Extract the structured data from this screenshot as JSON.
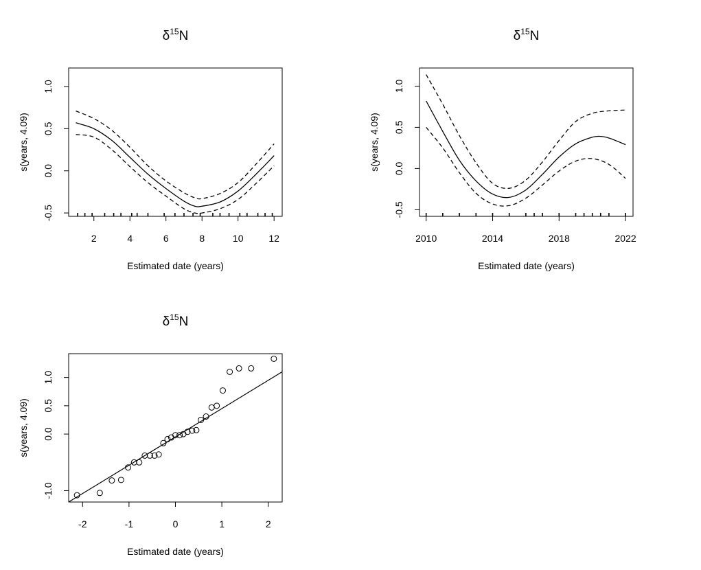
{
  "chart_data": [
    {
      "type": "line",
      "title": "δ15N",
      "title_base": "δ",
      "title_sup": "15",
      "title_rest": "N",
      "xlabel": "Estimated date (years)",
      "ylabel": "s(years, 4.09)",
      "xlim": [
        0.6,
        12.45
      ],
      "ylim": [
        -0.54,
        1.22
      ],
      "xticks": [
        2,
        4,
        6,
        8,
        10,
        12
      ],
      "xtick_labels": [
        "2",
        "4",
        "6",
        "8",
        "10",
        "12"
      ],
      "yticks": [
        -0.5,
        0.0,
        0.5,
        1.0
      ],
      "ytick_labels": [
        "-0.5",
        "0.0",
        "0.5",
        "1.0"
      ],
      "rug": [
        1.1,
        1.5,
        1.9,
        2.6,
        3.1,
        3.5,
        4.1,
        4.4,
        5.0,
        5.9,
        6.5,
        7.0,
        7.5,
        7.9,
        8.6,
        9.0,
        9.5,
        10.1,
        10.5,
        11.1,
        11.5,
        11.9
      ],
      "series": [
        {
          "style": "solid",
          "x": [
            1,
            2,
            3,
            4,
            5,
            6,
            7,
            7.6,
            8,
            9,
            10,
            11,
            12
          ],
          "y": [
            0.57,
            0.5,
            0.36,
            0.16,
            -0.04,
            -0.21,
            -0.36,
            -0.42,
            -0.42,
            -0.37,
            -0.24,
            -0.04,
            0.18
          ]
        },
        {
          "style": "dashed",
          "x": [
            1,
            2,
            3,
            4,
            5,
            6,
            7,
            7.6,
            8,
            9,
            10,
            11,
            12
          ],
          "y": [
            0.71,
            0.62,
            0.48,
            0.28,
            0.06,
            -0.12,
            -0.26,
            -0.32,
            -0.33,
            -0.27,
            -0.14,
            0.08,
            0.32
          ]
        },
        {
          "style": "dashed",
          "x": [
            1,
            2,
            3,
            4,
            5,
            6,
            7,
            7.6,
            8,
            9,
            10,
            11,
            12
          ],
          "y": [
            0.43,
            0.4,
            0.25,
            0.05,
            -0.14,
            -0.3,
            -0.45,
            -0.5,
            -0.5,
            -0.45,
            -0.34,
            -0.15,
            0.06
          ]
        }
      ]
    },
    {
      "type": "line",
      "title": "δ15N",
      "title_base": "δ",
      "title_sup": "15",
      "title_rest": "N",
      "xlabel": "Estimated date (years)",
      "ylabel": "s(years, 4.09)",
      "xlim": [
        2009.6,
        2022.45
      ],
      "ylim": [
        -0.58,
        1.22
      ],
      "xticks": [
        2010,
        2014,
        2018,
        2022
      ],
      "xtick_labels": [
        "2010",
        "2014",
        "2018",
        "2022"
      ],
      "yticks": [
        -0.5,
        0.0,
        0.5,
        1.0
      ],
      "ytick_labels": [
        "-0.5",
        "0.0",
        "0.5",
        "1.0"
      ],
      "rug": [
        2010.0,
        2011.0,
        2012.0,
        2013.0,
        2014.0,
        2015.0,
        2016.0,
        2016.5,
        2017.0,
        2018.0,
        2019.0,
        2019.5,
        2020.0,
        2020.5,
        2021.0,
        2022.0
      ],
      "series": [
        {
          "style": "solid",
          "x": [
            2010,
            2011,
            2012,
            2013,
            2014,
            2015,
            2016,
            2017,
            2018,
            2019,
            2020,
            2020.5,
            2021,
            2022
          ],
          "y": [
            0.82,
            0.45,
            0.1,
            -0.15,
            -0.31,
            -0.35,
            -0.26,
            -0.07,
            0.14,
            0.3,
            0.38,
            0.39,
            0.37,
            0.29
          ]
        },
        {
          "style": "dashed",
          "x": [
            2010,
            2011,
            2012,
            2013,
            2014,
            2015,
            2016,
            2017,
            2018,
            2019,
            2020,
            2021,
            2022
          ],
          "y": [
            1.14,
            0.78,
            0.4,
            0.07,
            -0.18,
            -0.24,
            -0.14,
            0.08,
            0.34,
            0.57,
            0.67,
            0.7,
            0.71
          ]
        },
        {
          "style": "dashed",
          "x": [
            2010,
            2011,
            2012,
            2013,
            2014,
            2015,
            2016,
            2017,
            2018,
            2019,
            2020,
            2021,
            2022
          ],
          "y": [
            0.5,
            0.25,
            -0.05,
            -0.3,
            -0.43,
            -0.45,
            -0.36,
            -0.2,
            -0.03,
            0.09,
            0.12,
            0.05,
            -0.12
          ]
        }
      ]
    },
    {
      "type": "scatter",
      "title": "δ15N",
      "title_base": "δ",
      "title_sup": "15",
      "title_rest": "N",
      "xlabel": "Estimated date (years)",
      "ylabel": "s(years, 4.09)",
      "xlim": [
        -2.3,
        2.3
      ],
      "ylim": [
        -1.2,
        1.42
      ],
      "xticks": [
        -2,
        -1,
        0,
        1,
        2
      ],
      "xtick_labels": [
        "-2",
        "-1",
        "0",
        "1",
        "2"
      ],
      "yticks": [
        -1.0,
        0.0,
        0.5,
        1.0
      ],
      "ytick_labels": [
        "-1.0",
        "0.0",
        "0.5",
        "1.0"
      ],
      "points": {
        "x": [
          -2.12,
          -1.63,
          -1.37,
          -1.17,
          -1.02,
          -0.89,
          -0.78,
          -0.66,
          -0.55,
          -0.45,
          -0.36,
          -0.26,
          -0.17,
          -0.09,
          0.0,
          0.09,
          0.17,
          0.26,
          0.36,
          0.45,
          0.55,
          0.66,
          0.78,
          0.89,
          1.02,
          1.17,
          1.37,
          1.63,
          2.12
        ],
        "y": [
          -1.08,
          -1.04,
          -0.82,
          -0.81,
          -0.59,
          -0.5,
          -0.5,
          -0.38,
          -0.38,
          -0.38,
          -0.36,
          -0.16,
          -0.09,
          -0.06,
          -0.02,
          -0.02,
          0.0,
          0.04,
          0.06,
          0.07,
          0.25,
          0.31,
          0.47,
          0.5,
          0.77,
          1.1,
          1.16,
          1.16,
          1.33
        ]
      },
      "reference_line": {
        "x": [
          -2.3,
          2.3
        ],
        "y": [
          -1.2,
          1.1
        ]
      }
    }
  ]
}
